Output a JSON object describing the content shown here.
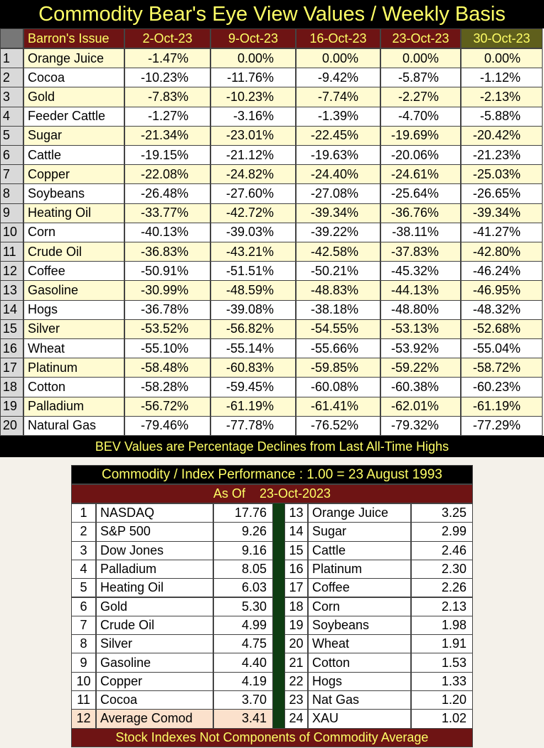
{
  "header": {
    "title": "Commodity Bear's Eye View Values / Weekly Basis"
  },
  "table": {
    "columns": [
      "Barron's Issue",
      "2-Oct-23",
      "9-Oct-23",
      "16-Oct-23",
      "23-Oct-23",
      "30-Oct-23"
    ],
    "rows": [
      [
        "1",
        "Orange Juice",
        "-1.47%",
        "0.00%",
        "0.00%",
        "0.00%",
        "0.00%"
      ],
      [
        "2",
        "Cocoa",
        "-10.23%",
        "-11.76%",
        "-9.42%",
        "-5.87%",
        "-1.12%"
      ],
      [
        "3",
        "Gold",
        "-7.83%",
        "-10.23%",
        "-7.74%",
        "-2.27%",
        "-2.13%"
      ],
      [
        "4",
        "Feeder Cattle",
        "-1.27%",
        "-3.16%",
        "-1.39%",
        "-4.70%",
        "-5.88%"
      ],
      [
        "5",
        "Sugar",
        "-21.34%",
        "-23.01%",
        "-22.45%",
        "-19.69%",
        "-20.42%"
      ],
      [
        "6",
        "Cattle",
        "-19.15%",
        "-21.12%",
        "-19.63%",
        "-20.06%",
        "-21.23%"
      ],
      [
        "7",
        "Copper",
        "-22.08%",
        "-24.82%",
        "-24.40%",
        "-24.61%",
        "-25.03%"
      ],
      [
        "8",
        "Soybeans",
        "-26.48%",
        "-27.60%",
        "-27.08%",
        "-25.64%",
        "-26.65%"
      ],
      [
        "9",
        "Heating Oil",
        "-33.77%",
        "-42.72%",
        "-39.34%",
        "-36.76%",
        "-39.34%"
      ],
      [
        "10",
        "Corn",
        "-40.13%",
        "-39.03%",
        "-39.22%",
        "-38.11%",
        "-41.27%"
      ],
      [
        "11",
        "Crude Oil",
        "-36.83%",
        "-43.21%",
        "-42.58%",
        "-37.83%",
        "-42.80%"
      ],
      [
        "12",
        "Coffee",
        "-50.91%",
        "-51.51%",
        "-50.21%",
        "-45.32%",
        "-46.24%"
      ],
      [
        "13",
        "Gasoline",
        "-30.99%",
        "-48.59%",
        "-48.83%",
        "-44.13%",
        "-46.95%"
      ],
      [
        "14",
        "Hogs",
        "-36.78%",
        "-39.08%",
        "-38.18%",
        "-48.80%",
        "-48.32%"
      ],
      [
        "15",
        "Silver",
        "-53.52%",
        "-56.82%",
        "-54.55%",
        "-53.13%",
        "-52.68%"
      ],
      [
        "16",
        "Wheat",
        "-55.10%",
        "-55.14%",
        "-55.66%",
        "-53.92%",
        "-55.04%"
      ],
      [
        "17",
        "Platinum",
        "-58.48%",
        "-60.83%",
        "-59.85%",
        "-59.22%",
        "-58.72%"
      ],
      [
        "18",
        "Cotton",
        "-58.28%",
        "-59.45%",
        "-60.08%",
        "-60.38%",
        "-60.23%"
      ],
      [
        "19",
        "Palladium",
        "-56.72%",
        "-61.19%",
        "-61.41%",
        "-62.01%",
        "-61.19%"
      ],
      [
        "20",
        "Natural Gas",
        "-79.46%",
        "-77.78%",
        "-76.52%",
        "-79.32%",
        "-77.29%"
      ]
    ]
  },
  "note": "BEV Values are Percentage Declines from Last All-Time Highs",
  "performance": {
    "title": "Commodity / Index Performance : 1.00 = 23 August 1993",
    "subtitle": "As Of    23-Oct-2023",
    "left": [
      [
        "1",
        "NASDAQ",
        "17.76"
      ],
      [
        "2",
        "S&P 500",
        "9.26"
      ],
      [
        "3",
        "Dow Jones",
        "9.16"
      ],
      [
        "4",
        "Palladium",
        "8.05"
      ],
      [
        "5",
        "Heating Oil",
        "6.03"
      ],
      [
        "6",
        "Gold",
        "5.30"
      ],
      [
        "7",
        "Crude Oil",
        "4.99"
      ],
      [
        "8",
        "Silver",
        "4.75"
      ],
      [
        "9",
        "Gasoline",
        "4.40"
      ],
      [
        "10",
        "Copper",
        "4.19"
      ],
      [
        "11",
        "Cocoa",
        "3.70"
      ],
      [
        "12",
        "Average Comod",
        "3.41"
      ]
    ],
    "right": [
      [
        "13",
        "Orange Juice",
        "3.25"
      ],
      [
        "14",
        "Sugar",
        "2.99"
      ],
      [
        "15",
        "Cattle",
        "2.46"
      ],
      [
        "16",
        "Platinum",
        "2.30"
      ],
      [
        "17",
        "Coffee",
        "2.26"
      ],
      [
        "18",
        "Corn",
        "2.13"
      ],
      [
        "19",
        "Soybeans",
        "1.98"
      ],
      [
        "20",
        "Wheat",
        "1.91"
      ],
      [
        "21",
        "Cotton",
        "1.53"
      ],
      [
        "22",
        "Hogs",
        "1.33"
      ],
      [
        "23",
        "Nat Gas",
        "1.20"
      ],
      [
        "24",
        "XAU",
        "1.02"
      ]
    ],
    "footer": "Stock Indexes Not Components of Commodity Average"
  }
}
